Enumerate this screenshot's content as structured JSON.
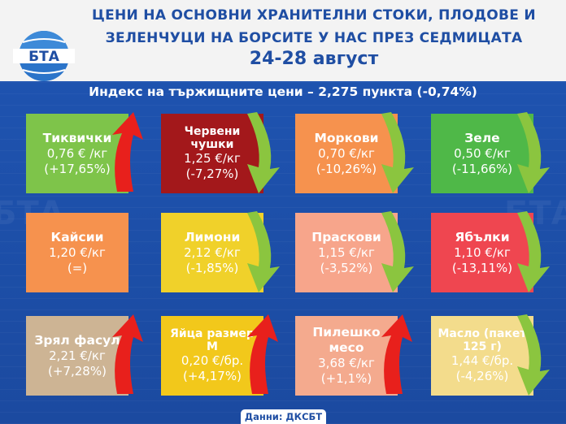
{
  "header": {
    "title_line1": "ЦЕНИ НА ОСНОВНИ ХРАНИТЕЛНИ СТОКИ, ПЛОДОВЕ И",
    "title_line2": "ЗЕЛЕНЧУЦИ НА БОРСИТЕ У НАС ПРЕЗ СЕДМИЦАТА",
    "dates": "24-28 август",
    "logo_text": "БТА"
  },
  "index_line": "Индекс на тържищните цени – 2,275 пункта (-0,74%)",
  "colors": {
    "background": "#1d4fa8",
    "up_arrow": "#e8201c",
    "down_arrow": "#8bc53f",
    "title": "#1f4ea3"
  },
  "items": [
    {
      "name": "Тиквички",
      "price": "0,76 € /кг",
      "change": "(+17,65%)",
      "color": "#7ec44a",
      "trend": "up"
    },
    {
      "name": "Червени чушки",
      "price": "1,25 €/кг",
      "change": "(-7,27%)",
      "color": "#a3181b",
      "trend": "down"
    },
    {
      "name": "Моркови",
      "price": "0,70 €/кг",
      "change": "(-10,26%)",
      "color": "#f6924e",
      "trend": "down"
    },
    {
      "name": "Зеле",
      "price": "0,50 €/кг",
      "change": "(-11,66%)",
      "color": "#4fb848",
      "trend": "down"
    },
    {
      "name": "Кайсии",
      "price": "1,20 €/кг",
      "change": "(=)",
      "color": "#f6924e",
      "trend": "none"
    },
    {
      "name": "Лимони",
      "price": "2,12 €/кг",
      "change": "(-1,85%)",
      "color": "#f0d12a",
      "trend": "down"
    },
    {
      "name": "Праскови",
      "price": "1,15 €/кг",
      "change": "(-3,52%)",
      "color": "#f7a58b",
      "trend": "down"
    },
    {
      "name": "Ябълки",
      "price": "1,10 €/кг",
      "change": "(-13,11%)",
      "color": "#ef4650",
      "trend": "down"
    },
    {
      "name": "Зрял фасул",
      "price": "2,21 €/кг",
      "change": "(+7,28%)",
      "color": "#cdb494",
      "trend": "up"
    },
    {
      "name": "Яйца размер М",
      "price": "0,20 €/бр.",
      "change": "(+4,17%)",
      "color": "#f2c81b",
      "trend": "up"
    },
    {
      "name": "Пилешко месо",
      "price": "3,68 €/кг",
      "change": "(+1,1%)",
      "color": "#f4aa8e",
      "trend": "up"
    },
    {
      "name": "Масло (пакет 125 г)",
      "price": "1,44 €/бр.",
      "change": "(-4,26%)",
      "color": "#f3dc8c",
      "trend": "down"
    }
  ],
  "footer": "Данни: ДКСБТ"
}
